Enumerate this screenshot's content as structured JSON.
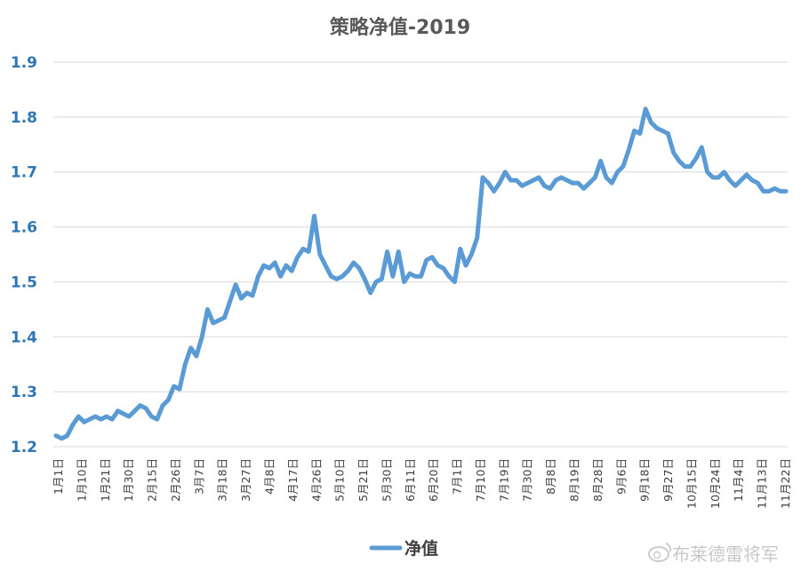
{
  "chart_data": {
    "type": "line",
    "title": "策略净值-2019",
    "xlabel": "",
    "ylabel": "",
    "ylim": [
      1.2,
      1.9
    ],
    "yticks": [
      "1.2",
      "1.3",
      "1.4",
      "1.5",
      "1.6",
      "1.7",
      "1.8",
      "1.9"
    ],
    "grid": true,
    "legend_position": "bottom",
    "x_tick_labels": [
      "1月1日",
      "1月10日",
      "1月21日",
      "1月30日",
      "2月15日",
      "2月26日",
      "3月7日",
      "3月18日",
      "3月27日",
      "4月8日",
      "4月17日",
      "4月26日",
      "5月10日",
      "5月21日",
      "5月30日",
      "6月11日",
      "6月20日",
      "7月1日",
      "7月10日",
      "7月19日",
      "7月30日",
      "8月8日",
      "8月19日",
      "8月28日",
      "9月6日",
      "9月18日",
      "9月27日",
      "10月15日",
      "10月24日",
      "11月4日",
      "11月13日",
      "11月22日"
    ],
    "series": [
      {
        "name": "净值",
        "color": "#5b9bd5",
        "values": [
          1.22,
          1.215,
          1.22,
          1.24,
          1.255,
          1.245,
          1.25,
          1.255,
          1.25,
          1.255,
          1.25,
          1.265,
          1.26,
          1.255,
          1.265,
          1.275,
          1.27,
          1.255,
          1.25,
          1.275,
          1.285,
          1.31,
          1.305,
          1.35,
          1.38,
          1.365,
          1.4,
          1.45,
          1.425,
          1.43,
          1.435,
          1.465,
          1.495,
          1.47,
          1.48,
          1.475,
          1.51,
          1.53,
          1.525,
          1.535,
          1.51,
          1.53,
          1.52,
          1.545,
          1.56,
          1.555,
          1.62,
          1.55,
          1.53,
          1.51,
          1.505,
          1.51,
          1.52,
          1.535,
          1.525,
          1.505,
          1.48,
          1.5,
          1.505,
          1.555,
          1.51,
          1.555,
          1.5,
          1.515,
          1.51,
          1.51,
          1.54,
          1.545,
          1.53,
          1.525,
          1.51,
          1.5,
          1.56,
          1.53,
          1.55,
          1.58,
          1.69,
          1.68,
          1.665,
          1.68,
          1.7,
          1.685,
          1.685,
          1.675,
          1.68,
          1.685,
          1.69,
          1.675,
          1.67,
          1.685,
          1.69,
          1.685,
          1.68,
          1.68,
          1.67,
          1.68,
          1.69,
          1.72,
          1.69,
          1.68,
          1.7,
          1.71,
          1.74,
          1.775,
          1.77,
          1.815,
          1.79,
          1.78,
          1.775,
          1.77,
          1.735,
          1.72,
          1.71,
          1.71,
          1.725,
          1.745,
          1.7,
          1.69,
          1.69,
          1.7,
          1.685,
          1.675,
          1.685,
          1.695,
          1.685,
          1.68,
          1.665,
          1.665,
          1.67,
          1.665,
          1.665
        ]
      }
    ]
  },
  "legend": {
    "label": "净值"
  },
  "watermark": {
    "text": "布莱德雷将军"
  }
}
